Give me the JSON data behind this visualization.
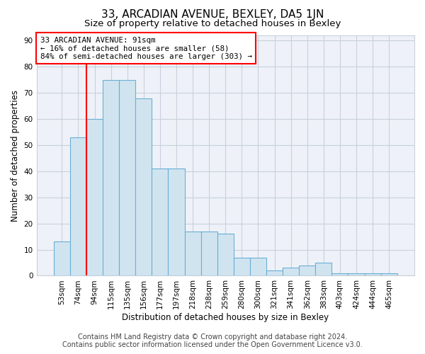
{
  "title": "33, ARCADIAN AVENUE, BEXLEY, DA5 1JN",
  "subtitle": "Size of property relative to detached houses in Bexley",
  "xlabel": "Distribution of detached houses by size in Bexley",
  "ylabel": "Number of detached properties",
  "categories": [
    "53sqm",
    "74sqm",
    "94sqm",
    "115sqm",
    "135sqm",
    "156sqm",
    "177sqm",
    "197sqm",
    "218sqm",
    "238sqm",
    "259sqm",
    "280sqm",
    "300sqm",
    "321sqm",
    "341sqm",
    "362sqm",
    "383sqm",
    "403sqm",
    "424sqm",
    "444sqm",
    "465sqm"
  ],
  "values": [
    13,
    53,
    60,
    75,
    75,
    68,
    41,
    41,
    17,
    17,
    16,
    7,
    7,
    2,
    3,
    4,
    5,
    1,
    1,
    1,
    1
  ],
  "bar_color": "#d0e4f0",
  "bar_edge_color": "#6aaed6",
  "red_line_index": 2,
  "annotation_text": "33 ARCADIAN AVENUE: 91sqm\n← 16% of detached houses are smaller (58)\n84% of semi-detached houses are larger (303) →",
  "annotation_box_color": "white",
  "annotation_box_edge": "red",
  "ylim_max": 92,
  "yticks": [
    0,
    10,
    20,
    30,
    40,
    50,
    60,
    70,
    80,
    90
  ],
  "footer_line1": "Contains HM Land Registry data © Crown copyright and database right 2024.",
  "footer_line2": "Contains public sector information licensed under the Open Government Licence v3.0.",
  "bg_color": "#ffffff",
  "plot_bg_color": "#eef2f8",
  "grid_color": "#c8d0dc",
  "title_fontsize": 11,
  "subtitle_fontsize": 9.5,
  "ylabel_fontsize": 8.5,
  "xlabel_fontsize": 8.5,
  "tick_fontsize": 7.5,
  "annot_fontsize": 7.8,
  "footer_fontsize": 7
}
